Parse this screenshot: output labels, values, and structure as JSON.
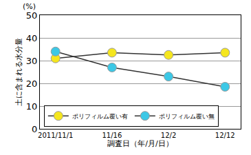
{
  "chart_data": {
    "type": "line",
    "x_label": "調査日（年/月/日）",
    "y_label": "土に含まれる水分量",
    "annotations": [
      "(%)"
    ],
    "categories": [
      "2011/11/1",
      "11/16",
      "12/2",
      "12/12"
    ],
    "series": [
      {
        "name": "ポリフィルム覆い有",
        "color": "#f5e61e",
        "marker": "circle",
        "values": [
          31,
          33.5,
          32.5,
          33.5
        ]
      },
      {
        "name": "ポリフィルム覆い無",
        "color": "#3cc8e6",
        "marker": "circle",
        "values": [
          34,
          27,
          23,
          18.5
        ]
      }
    ],
    "ylim": [
      0,
      50
    ],
    "yticks": [
      0,
      10,
      20,
      30,
      40,
      50
    ],
    "grid": true,
    "legend": "bottom left"
  }
}
